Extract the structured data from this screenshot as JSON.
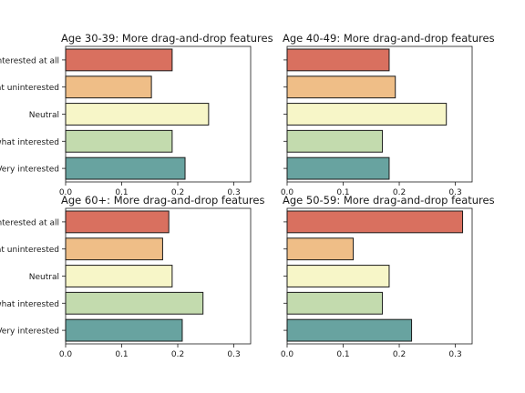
{
  "chart_data": [
    {
      "type": "bar",
      "orientation": "horizontal",
      "title": "Age 30-39: More drag-and-drop features",
      "categories": [
        "Not interested at all",
        "Somewhat uninterested",
        "Neutral",
        "Somewhat interested",
        "Very interested"
      ],
      "category_labels_visible": [
        "nterested at all",
        "at uninterested",
        "Neutral",
        "what interested",
        "Very interested"
      ],
      "values": [
        0.19,
        0.153,
        0.255,
        0.19,
        0.213
      ],
      "xlim": [
        0,
        0.33
      ],
      "xticks": [
        "0.0",
        "0.1",
        "0.2",
        "0.3"
      ],
      "show_category_labels": true
    },
    {
      "type": "bar",
      "orientation": "horizontal",
      "title": "Age 40-49: More drag-and-drop features",
      "categories": [
        "Not interested at all",
        "Somewhat uninterested",
        "Neutral",
        "Somewhat interested",
        "Very interested"
      ],
      "category_labels_visible": [
        "",
        "",
        "",
        "",
        ""
      ],
      "values": [
        0.182,
        0.193,
        0.284,
        0.17,
        0.182
      ],
      "xlim": [
        0,
        0.33
      ],
      "xticks": [
        "0.0",
        "0.1",
        "0.2",
        "0.3"
      ],
      "show_category_labels": false
    },
    {
      "type": "bar",
      "orientation": "horizontal",
      "title": "Age 60+: More drag-and-drop features",
      "categories": [
        "Not interested at all",
        "Somewhat uninterested",
        "Neutral",
        "Somewhat interested",
        "Very interested"
      ],
      "category_labels_visible": [
        "nterested at all",
        "at uninterested",
        "Neutral",
        "what interested",
        "Very interested"
      ],
      "values": [
        0.184,
        0.173,
        0.19,
        0.245,
        0.208
      ],
      "xlim": [
        0,
        0.33
      ],
      "xticks": [
        "0.0",
        "0.1",
        "0.2",
        "0.3"
      ],
      "show_category_labels": true
    },
    {
      "type": "bar",
      "orientation": "horizontal",
      "title": "Age 50-59: More drag-and-drop features",
      "categories": [
        "Not interested at all",
        "Somewhat uninterested",
        "Neutral",
        "Somewhat interested",
        "Very interested"
      ],
      "category_labels_visible": [
        "",
        "",
        "",
        "",
        ""
      ],
      "values": [
        0.313,
        0.118,
        0.182,
        0.17,
        0.222
      ],
      "xlim": [
        0,
        0.33
      ],
      "xticks": [
        "0.0",
        "0.1",
        "0.2",
        "0.3"
      ],
      "show_category_labels": false
    }
  ],
  "colors": [
    "#d9705f",
    "#efbe87",
    "#f7f6c8",
    "#c3dbae",
    "#68a3a0"
  ],
  "edge_color": "#1a1a1a"
}
